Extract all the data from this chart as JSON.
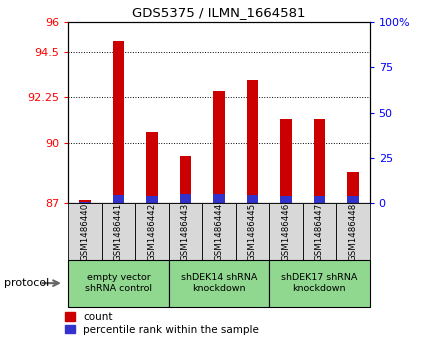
{
  "title": "GDS5375 / ILMN_1664581",
  "samples": [
    "GSM1486440",
    "GSM1486441",
    "GSM1486442",
    "GSM1486443",
    "GSM1486444",
    "GSM1486445",
    "GSM1486446",
    "GSM1486447",
    "GSM1486448"
  ],
  "count_values": [
    87.15,
    95.05,
    90.55,
    89.35,
    92.55,
    93.1,
    91.2,
    91.2,
    88.55
  ],
  "percentile_values": [
    0.45,
    4.5,
    4.0,
    5.0,
    5.0,
    4.5,
    4.0,
    4.0,
    4.0
  ],
  "ylim_left": [
    87,
    96
  ],
  "ylim_right": [
    0,
    100
  ],
  "yticks_left": [
    87,
    90,
    92.25,
    94.5,
    96
  ],
  "yticks_left_labels": [
    "87",
    "90",
    "92.25",
    "94.5",
    "96"
  ],
  "yticks_right": [
    0,
    25,
    50,
    75,
    100
  ],
  "yticks_right_labels": [
    "0",
    "25",
    "50",
    "75",
    "100%"
  ],
  "bar_bottom": 87.0,
  "bar_color_red": "#cc0000",
  "bar_color_blue": "#3333cc",
  "groups": [
    {
      "label": "empty vector\nshRNA control",
      "start": 0,
      "end": 3
    },
    {
      "label": "shDEK14 shRNA\nknockdown",
      "start": 3,
      "end": 6
    },
    {
      "label": "shDEK17 shRNA\nknockdown",
      "start": 6,
      "end": 9
    }
  ],
  "protocol_label": "protocol",
  "legend_count_label": "count",
  "legend_pct_label": "percentile rank within the sample",
  "bar_width": 0.35,
  "group_box_color": "#90d890",
  "sample_box_color": "#d8d8d8"
}
